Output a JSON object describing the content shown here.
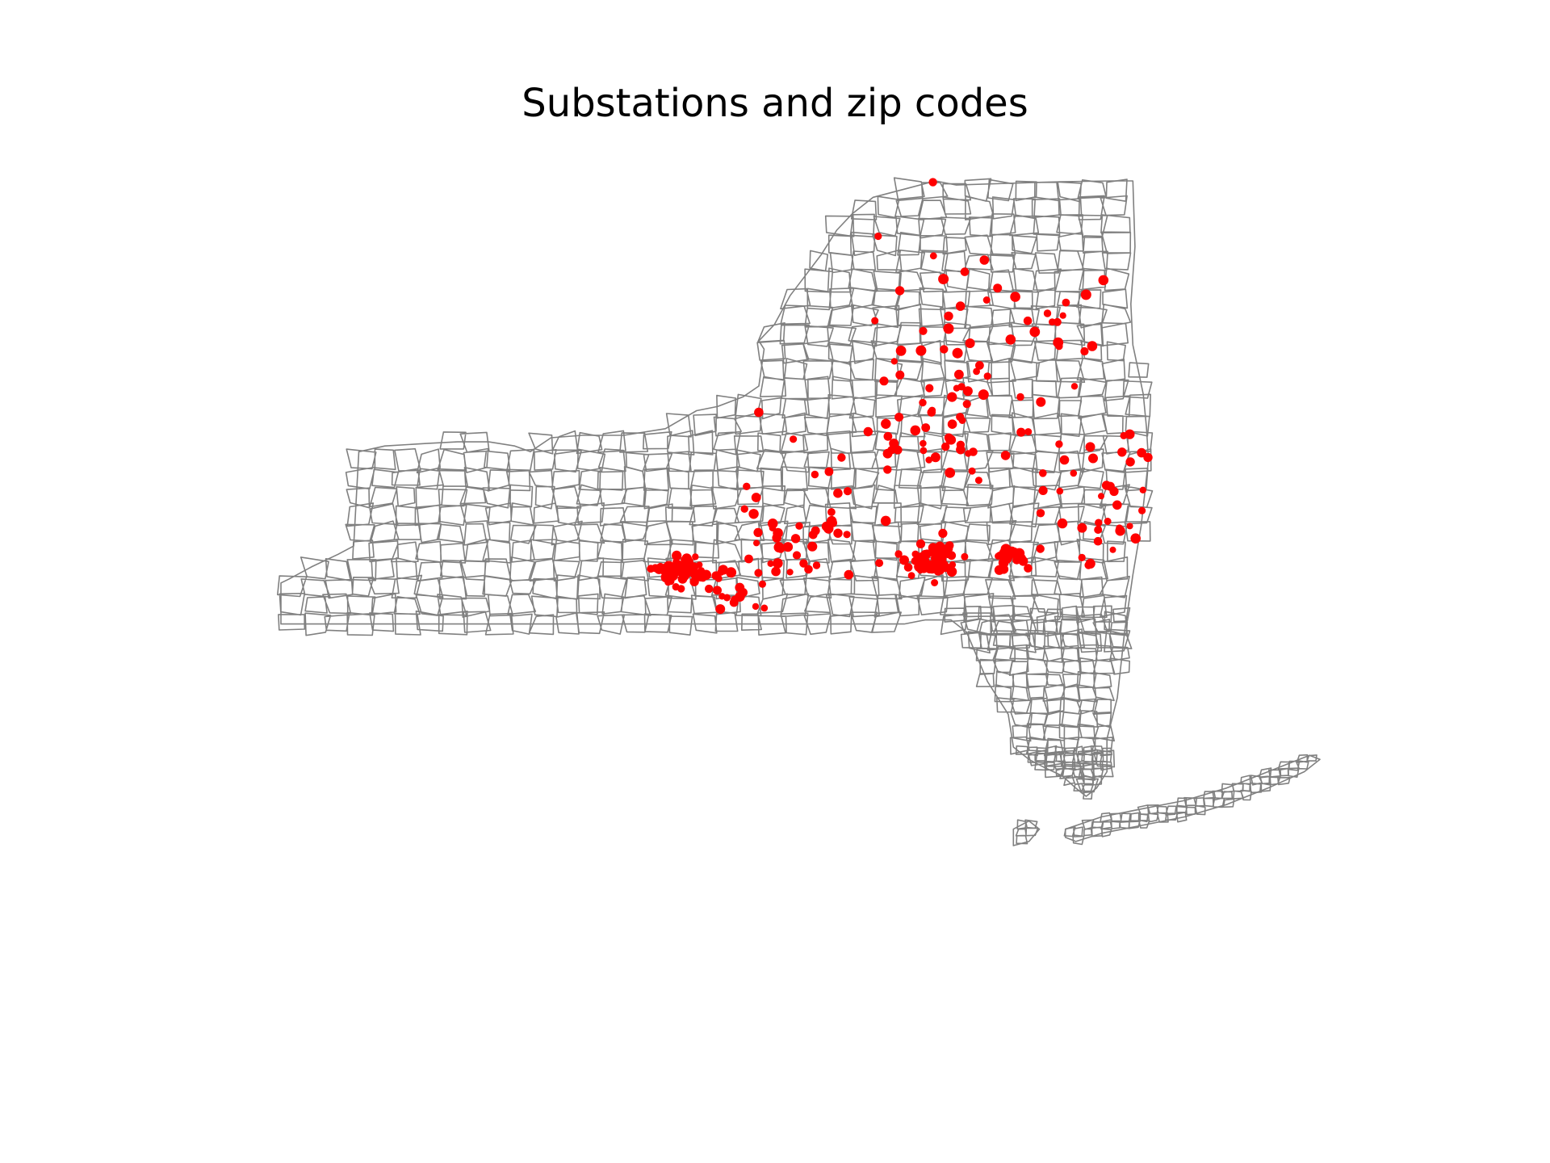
{
  "title": "Substations and zip codes",
  "colors": {
    "boundary": "#808080",
    "substation": "#ff0000",
    "background": "#ffffff"
  },
  "map": {
    "region": "New York State",
    "layers": [
      "zip-code-boundaries",
      "substation-points"
    ]
  },
  "chart_data": {
    "type": "scatter",
    "title": "Substations and zip codes",
    "xlabel": "",
    "ylabel": "",
    "axes_visible": false,
    "grid": false,
    "series": [
      {
        "name": "",
        "color": "#ff0000",
        "clusters": [
          {
            "cx": 0.385,
            "cy": 0.475,
            "spread": 0.01,
            "count": 70
          },
          {
            "cx": 0.5,
            "cy": 0.43,
            "spread": 0.04,
            "count": 40
          },
          {
            "cx": 0.628,
            "cy": 0.462,
            "spread": 0.012,
            "count": 60
          },
          {
            "cx": 0.7,
            "cy": 0.455,
            "spread": 0.008,
            "count": 25
          },
          {
            "cx": 0.855,
            "cy": 0.515,
            "spread": 0.01,
            "count": 60
          },
          {
            "cx": 0.875,
            "cy": 0.42,
            "spread": 0.006,
            "count": 15
          },
          {
            "cx": 0.7,
            "cy": 0.22,
            "spread": 0.1,
            "count": 60
          },
          {
            "cx": 0.63,
            "cy": 0.32,
            "spread": 0.03,
            "count": 30
          },
          {
            "cx": 0.8,
            "cy": 0.4,
            "spread": 0.06,
            "count": 40
          },
          {
            "cx": 0.44,
            "cy": 0.5,
            "spread": 0.02,
            "count": 20
          }
        ]
      }
    ]
  }
}
